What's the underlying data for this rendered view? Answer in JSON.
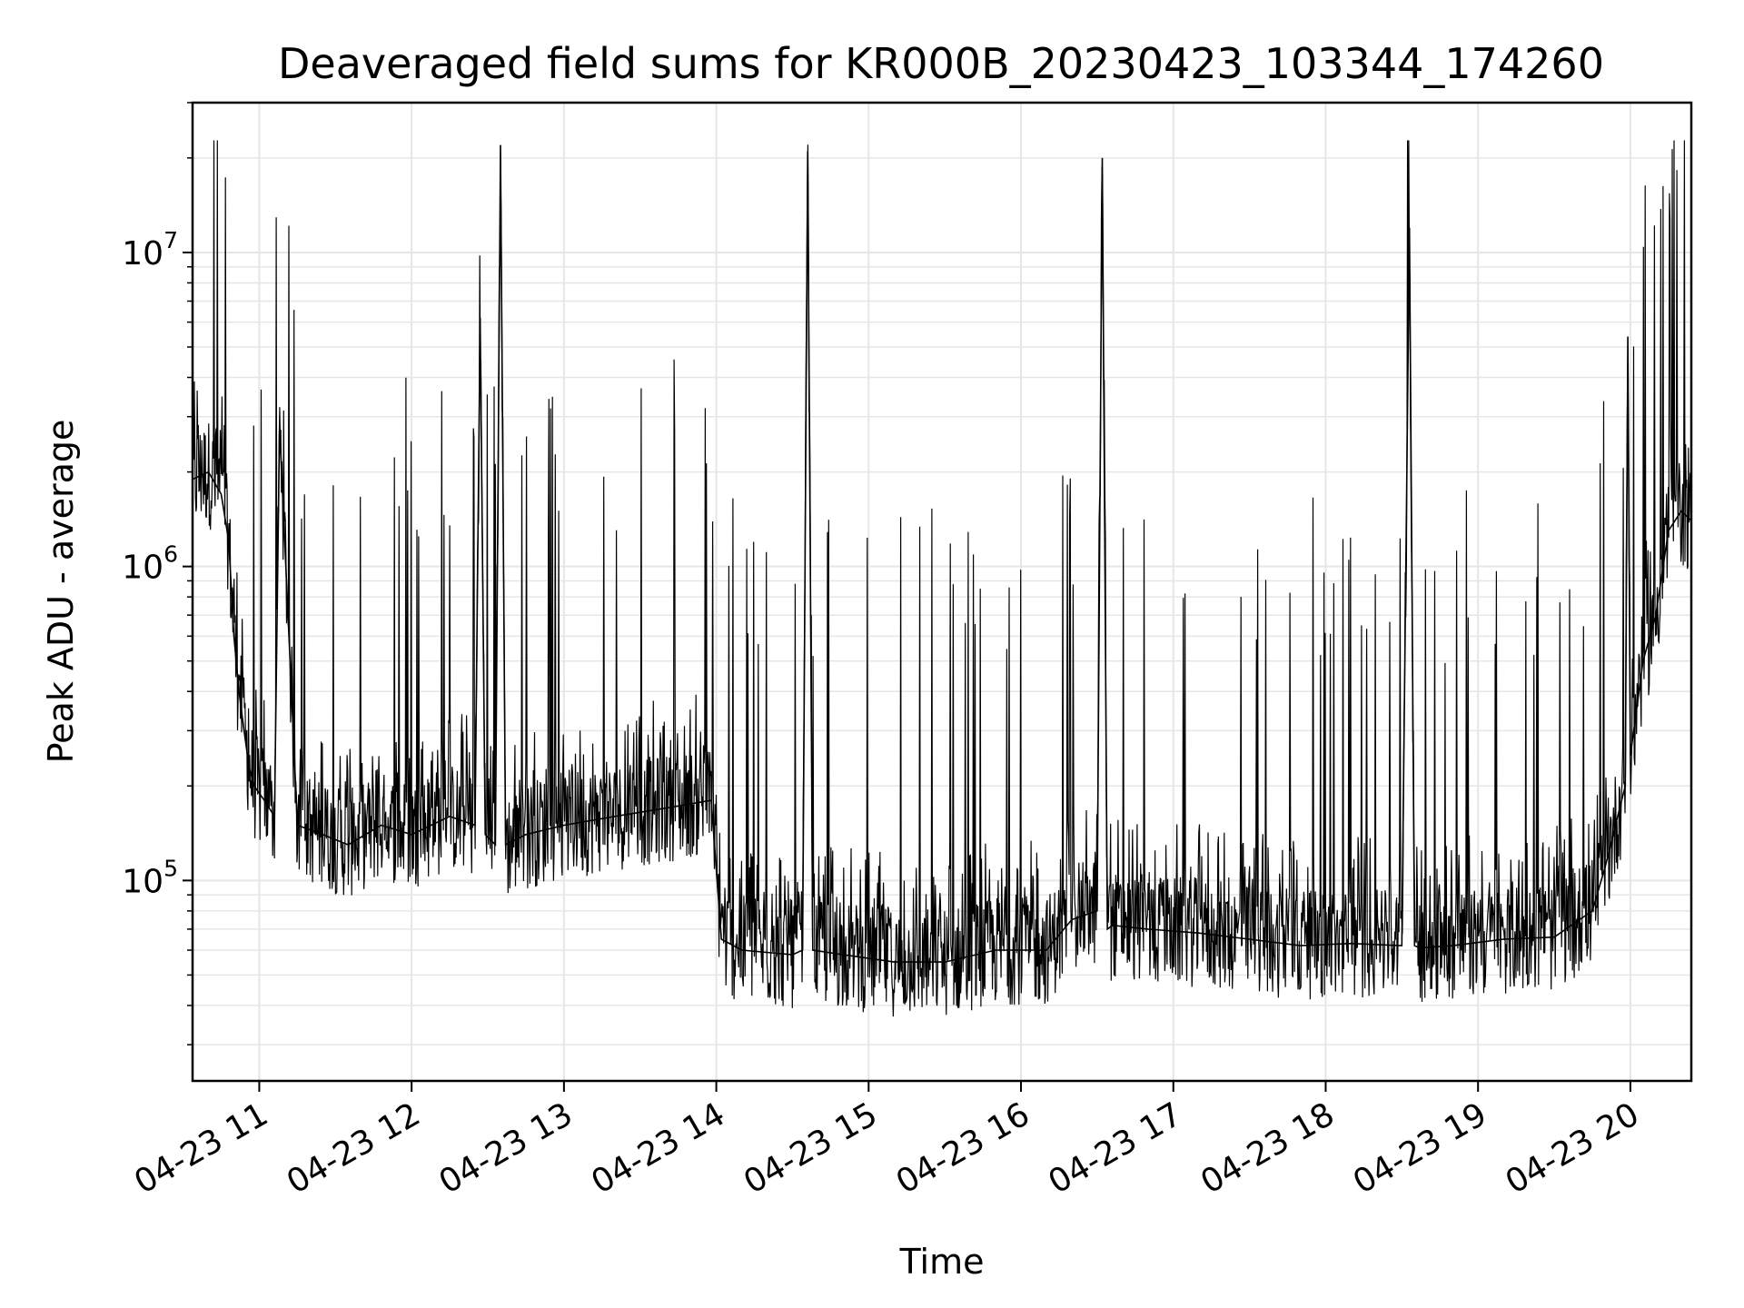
{
  "chart_data": {
    "type": "line",
    "title": "Deaveraged field sums for KR000B_20230423_103344_174260",
    "xlabel": "Time",
    "ylabel": "Peak ADU - average",
    "xlim": [
      "2023-04-23T10:33:44",
      "2023-04-23T20:24:00"
    ],
    "ylim": [
      23000,
      30000000
    ],
    "yscale": "log",
    "grid": true,
    "line_color": "#000000",
    "grid_color": "#e6e6e6",
    "x_ticks": [
      {
        "t": "2023-04-23T11:00",
        "label": "04-23 11"
      },
      {
        "t": "2023-04-23T12:00",
        "label": "04-23 12"
      },
      {
        "t": "2023-04-23T13:00",
        "label": "04-23 13"
      },
      {
        "t": "2023-04-23T14:00",
        "label": "04-23 14"
      },
      {
        "t": "2023-04-23T15:00",
        "label": "04-23 15"
      },
      {
        "t": "2023-04-23T16:00",
        "label": "04-23 16"
      },
      {
        "t": "2023-04-23T17:00",
        "label": "04-23 17"
      },
      {
        "t": "2023-04-23T18:00",
        "label": "04-23 18"
      },
      {
        "t": "2023-04-23T19:00",
        "label": "04-23 19"
      },
      {
        "t": "2023-04-23T20:00",
        "label": "04-23 20"
      }
    ],
    "y_ticks": [
      {
        "v": 100000,
        "base": "10",
        "exp": "5"
      },
      {
        "v": 1000000,
        "base": "10",
        "exp": "6"
      },
      {
        "v": 10000000,
        "base": "10",
        "exp": "7"
      }
    ],
    "series": [
      {
        "x": [
          "2023-04-23T10:34",
          "2023-04-23T10:40",
          "2023-04-23T10:45",
          "2023-04-23T10:48",
          "2023-04-23T10:50",
          "2023-04-23T10:52",
          "2023-04-23T10:54",
          "2023-04-23T10:56",
          "2023-04-23T10:58",
          "2023-04-23T11:02",
          "2023-04-23T11:06",
          "2023-04-23T11:08",
          "2023-04-23T11:15",
          "2023-04-23T11:25",
          "2023-04-23T11:35",
          "2023-04-23T11:48",
          "2023-04-23T12:00",
          "2023-04-23T12:15",
          "2023-04-23T12:25",
          "2023-04-23T12:27",
          "2023-04-23T12:29",
          "2023-04-23T12:33",
          "2023-04-23T12:35",
          "2023-04-23T12:37",
          "2023-04-23T12:45",
          "2023-04-23T13:00",
          "2023-04-23T13:20",
          "2023-04-23T13:40",
          "2023-04-23T13:58",
          "2023-04-23T14:02",
          "2023-04-23T14:10",
          "2023-04-23T14:30",
          "2023-04-23T14:34",
          "2023-04-23T14:36",
          "2023-04-23T14:38",
          "2023-04-23T14:50",
          "2023-04-23T15:10",
          "2023-04-23T15:30",
          "2023-04-23T15:50",
          "2023-04-23T16:10",
          "2023-04-23T16:20",
          "2023-04-23T16:30",
          "2023-04-23T16:32",
          "2023-04-23T16:34",
          "2023-04-23T16:36",
          "2023-04-23T16:50",
          "2023-04-23T17:10",
          "2023-04-23T17:30",
          "2023-04-23T17:50",
          "2023-04-23T18:10",
          "2023-04-23T18:30",
          "2023-04-23T18:33",
          "2023-04-23T18:35",
          "2023-04-23T18:37",
          "2023-04-23T18:50",
          "2023-04-23T19:10",
          "2023-04-23T19:30",
          "2023-04-23T19:45",
          "2023-04-23T19:50",
          "2023-04-23T19:55",
          "2023-04-23T19:58",
          "2023-04-23T19:59",
          "2023-04-23T20:00",
          "2023-04-23T20:05",
          "2023-04-23T20:10",
          "2023-04-23T20:15",
          "2023-04-23T20:20",
          "2023-04-23T20:24"
        ],
        "y": [
          1900000,
          2000000,
          1700000,
          1200000,
          600000,
          400000,
          300000,
          230000,
          200000,
          180000,
          160000,
          2800000,
          150000,
          140000,
          130000,
          150000,
          140000,
          160000,
          150000,
          6200000,
          140000,
          130000,
          22000000,
          130000,
          140000,
          150000,
          160000,
          170000,
          180000,
          65000,
          60000,
          58000,
          60000,
          21000000,
          60000,
          58000,
          55000,
          55000,
          60000,
          60000,
          75000,
          80000,
          20000000,
          70000,
          72000,
          70000,
          68000,
          65000,
          62000,
          63000,
          62000,
          12000000,
          62000,
          61000,
          62000,
          65000,
          66000,
          80000,
          110000,
          160000,
          200000,
          5400000,
          250000,
          500000,
          700000,
          1300000,
          1500000,
          1400000
        ]
      }
    ]
  }
}
